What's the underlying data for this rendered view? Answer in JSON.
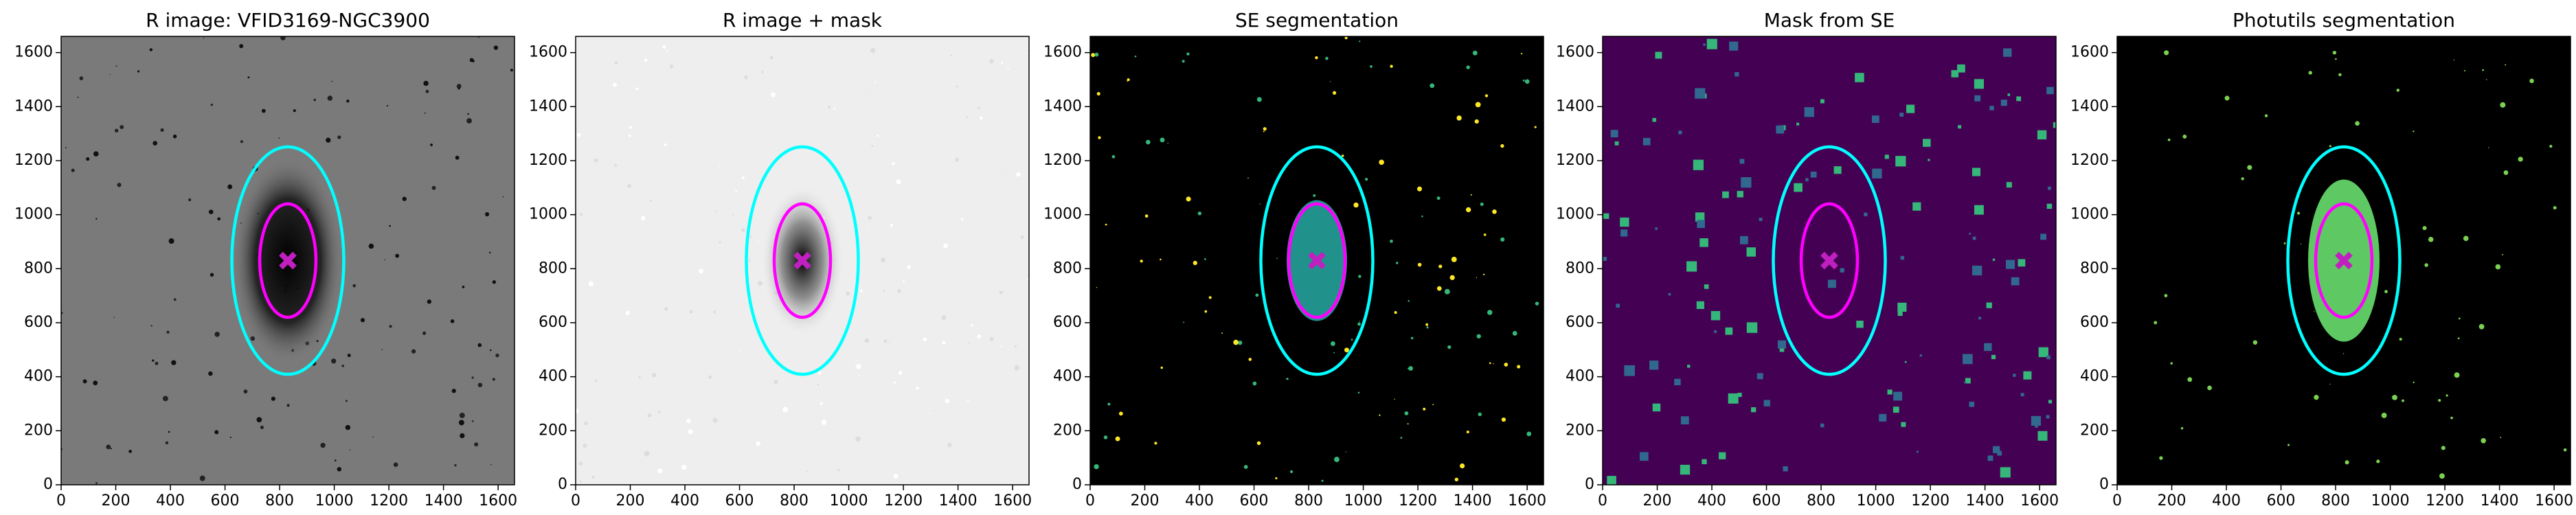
{
  "chart_data": [
    {
      "type": "image",
      "title": "R image: VFID3169-NGC3900",
      "background": "#7a7a7a",
      "xlim": [
        0,
        1660
      ],
      "ylim": [
        0,
        1660
      ],
      "xticks": [
        0,
        200,
        400,
        600,
        800,
        1000,
        1200,
        1400,
        1600
      ],
      "yticks": [
        0,
        200,
        400,
        600,
        800,
        1000,
        1200,
        1400,
        1600
      ],
      "ellipses": [
        {
          "x": 830,
          "y": 830,
          "rx": 205,
          "ry": 421,
          "color": "#00ffff"
        },
        {
          "x": 830,
          "y": 830,
          "rx": 103,
          "ry": 210,
          "color": "#ff00ff"
        }
      ],
      "marker": {
        "x": 830,
        "y": 830,
        "color": "#c020c0"
      }
    },
    {
      "type": "image",
      "title": "R image + mask",
      "background": "#eeeeee",
      "xlim": [
        0,
        1660
      ],
      "ylim": [
        0,
        1660
      ],
      "xticks": [
        0,
        200,
        400,
        600,
        800,
        1000,
        1200,
        1400,
        1600
      ],
      "yticks": [
        0,
        200,
        400,
        600,
        800,
        1000,
        1200,
        1400,
        1600
      ],
      "ellipses": [
        {
          "x": 830,
          "y": 830,
          "rx": 205,
          "ry": 421,
          "color": "#00ffff"
        },
        {
          "x": 830,
          "y": 830,
          "rx": 103,
          "ry": 210,
          "color": "#ff00ff"
        }
      ],
      "marker": {
        "x": 830,
        "y": 830,
        "color": "#c020c0"
      }
    },
    {
      "type": "image",
      "title": "SE segmentation",
      "background": "#000000",
      "xlim": [
        0,
        1660
      ],
      "ylim": [
        0,
        1660
      ],
      "xticks": [
        0,
        200,
        400,
        600,
        800,
        1000,
        1200,
        1400,
        1600
      ],
      "yticks": [
        0,
        200,
        400,
        600,
        800,
        1000,
        1200,
        1400,
        1600
      ],
      "ellipses": [
        {
          "x": 830,
          "y": 830,
          "rx": 205,
          "ry": 421,
          "color": "#00ffff"
        },
        {
          "x": 830,
          "y": 830,
          "rx": 103,
          "ry": 210,
          "color": "#ff00ff"
        }
      ],
      "marker": {
        "x": 830,
        "y": 830,
        "color": "#c020c0"
      }
    },
    {
      "type": "image",
      "title": "Mask from SE",
      "background": "#440154",
      "xlim": [
        0,
        1660
      ],
      "ylim": [
        0,
        1660
      ],
      "xticks": [
        0,
        200,
        400,
        600,
        800,
        1000,
        1200,
        1400,
        1600
      ],
      "yticks": [
        0,
        200,
        400,
        600,
        800,
        1000,
        1200,
        1400,
        1600
      ],
      "ellipses": [
        {
          "x": 830,
          "y": 830,
          "rx": 205,
          "ry": 421,
          "color": "#00ffff"
        },
        {
          "x": 830,
          "y": 830,
          "rx": 103,
          "ry": 210,
          "color": "#ff00ff"
        }
      ],
      "marker": {
        "x": 830,
        "y": 830,
        "color": "#c020c0"
      }
    },
    {
      "type": "image",
      "title": "Photutils segmentation",
      "background": "#000000",
      "xlim": [
        0,
        1660
      ],
      "ylim": [
        0,
        1660
      ],
      "xticks": [
        0,
        200,
        400,
        600,
        800,
        1000,
        1200,
        1400,
        1600
      ],
      "yticks": [
        0,
        200,
        400,
        600,
        800,
        1000,
        1200,
        1400,
        1600
      ],
      "ellipses": [
        {
          "x": 830,
          "y": 830,
          "rx": 205,
          "ry": 421,
          "color": "#00ffff"
        },
        {
          "x": 830,
          "y": 830,
          "rx": 103,
          "ry": 210,
          "color": "#ff00ff"
        }
      ],
      "marker": {
        "x": 830,
        "y": 830,
        "color": "#c020c0"
      }
    }
  ]
}
